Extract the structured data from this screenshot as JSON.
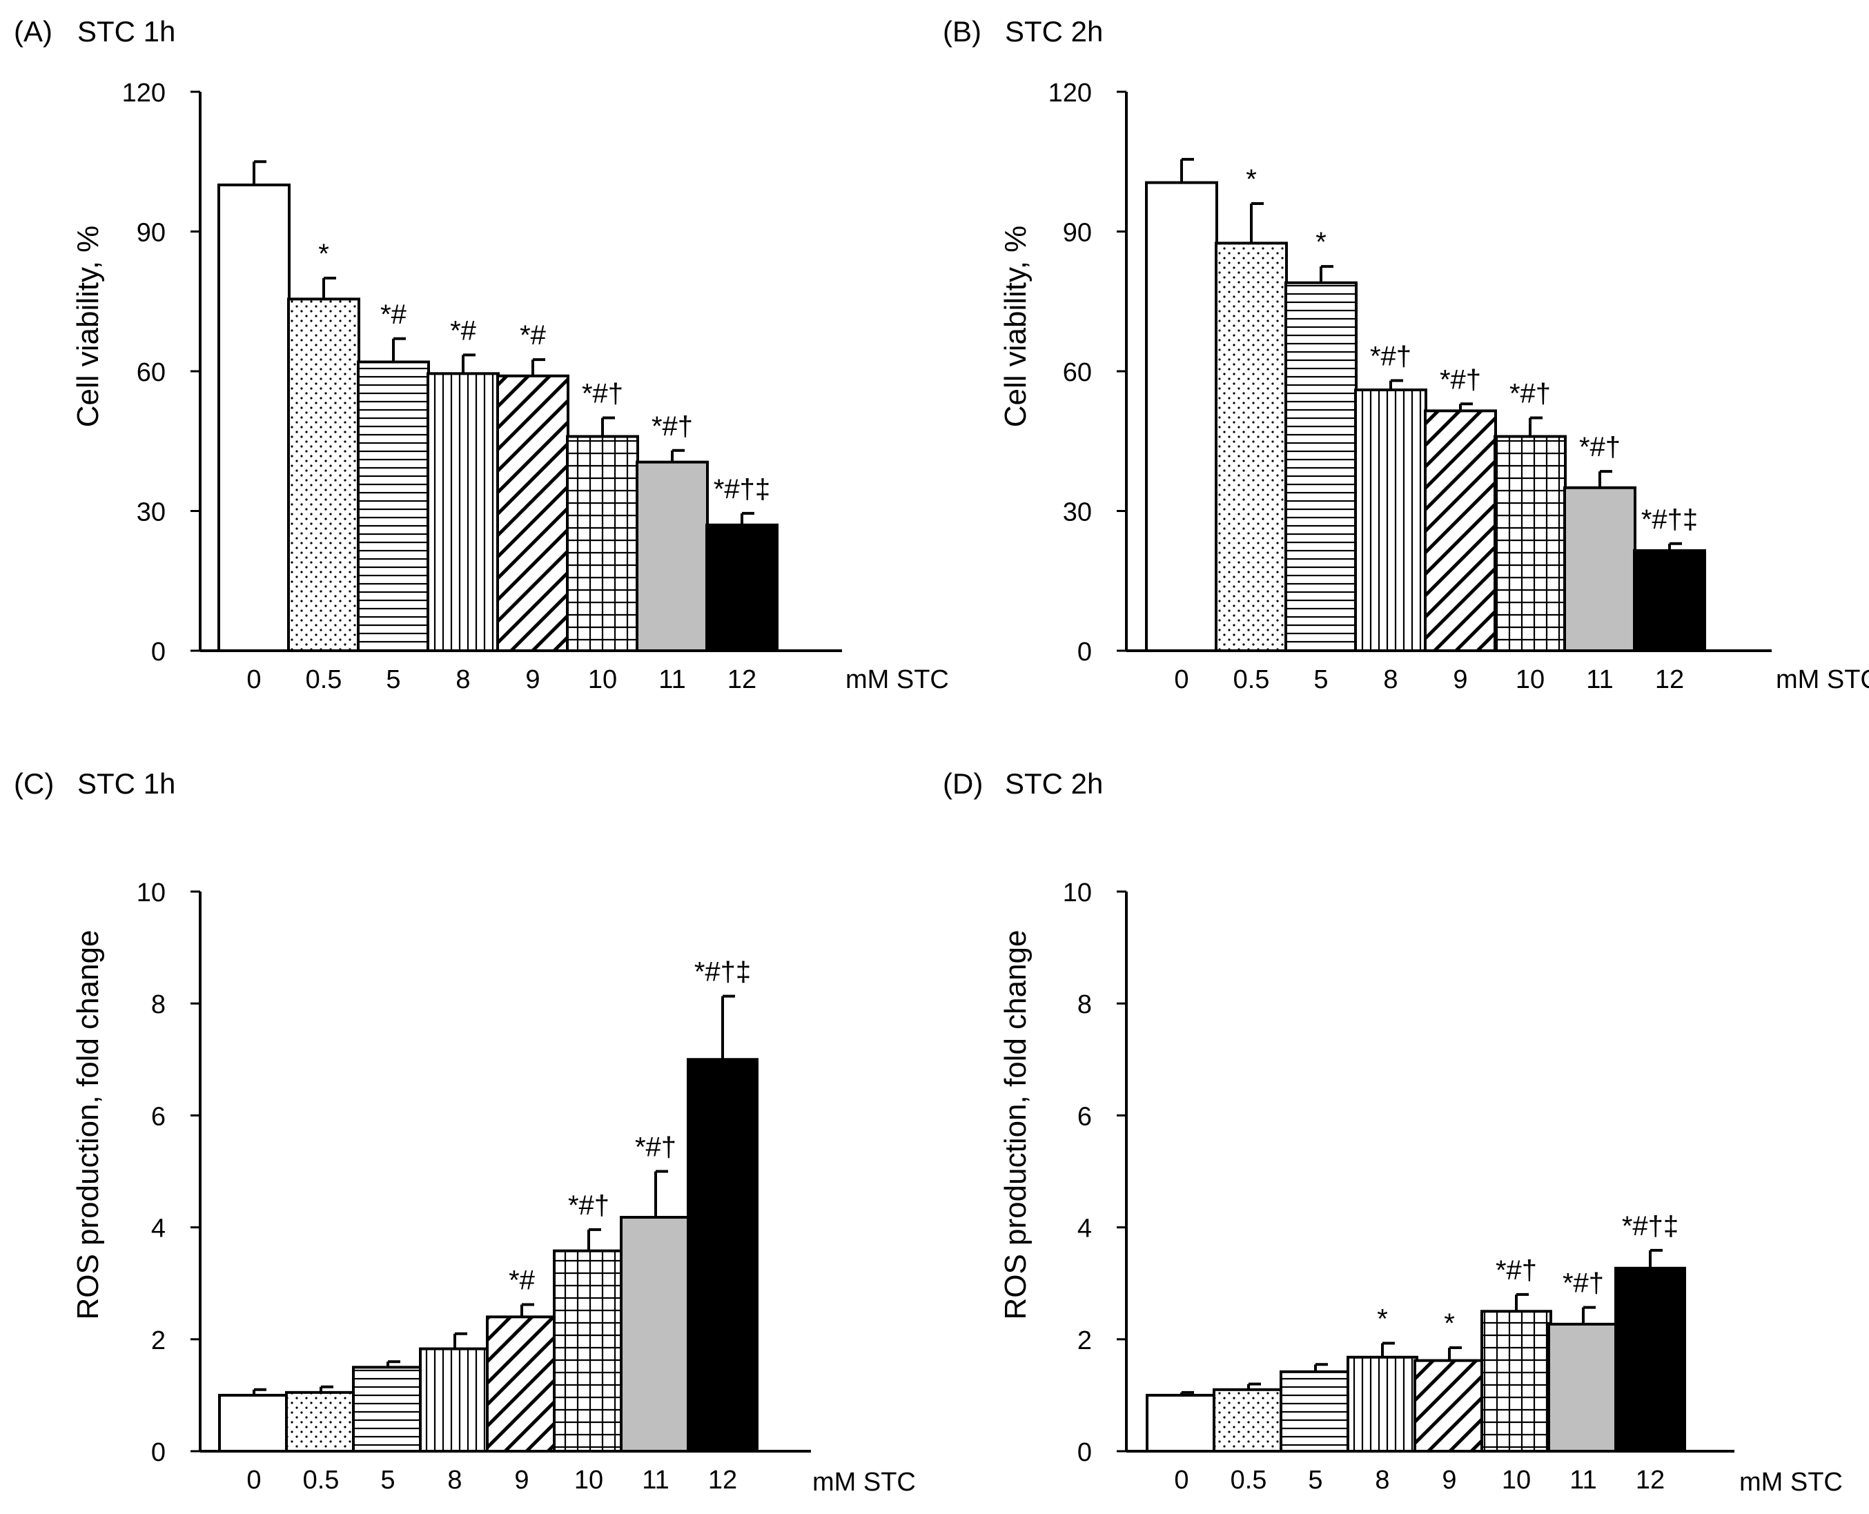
{
  "chart_data": [
    {
      "id": "A",
      "type": "bar",
      "panel_label": "(A)",
      "title": "STC 1h",
      "ylabel": "Cell viability, %",
      "xlabel": "mM STC",
      "ylim": [
        0,
        120
      ],
      "yticks": [
        0,
        30,
        60,
        90,
        120
      ],
      "categories": [
        "0",
        "0.5",
        "5",
        "8",
        "9",
        "10",
        "11",
        "12"
      ],
      "values": [
        100,
        75.5,
        62,
        59.5,
        59,
        46,
        40.5,
        27
      ],
      "errors": [
        5,
        4.5,
        5,
        4,
        3.5,
        4,
        2.5,
        2.5
      ],
      "annotations": [
        "",
        "*",
        "*#",
        "*#",
        "*#",
        "*#†",
        "*#†",
        "*#†‡"
      ]
    },
    {
      "id": "B",
      "type": "bar",
      "panel_label": "(B)",
      "title": "STC 2h",
      "ylabel": "Cell viability, %",
      "xlabel": "mM STC",
      "ylim": [
        0,
        120
      ],
      "yticks": [
        0,
        30,
        60,
        90,
        120
      ],
      "categories": [
        "0",
        "0.5",
        "5",
        "8",
        "9",
        "10",
        "11",
        "12"
      ],
      "values": [
        100.5,
        87.5,
        79,
        56,
        51.5,
        46,
        35,
        21.5
      ],
      "errors": [
        5,
        8.5,
        3.5,
        2,
        1.5,
        4,
        3.5,
        1.5
      ],
      "annotations": [
        "",
        "*",
        "*",
        "*#†",
        "*#†",
        "*#†",
        "*#†",
        "*#†‡"
      ]
    },
    {
      "id": "C",
      "type": "bar",
      "panel_label": "(C)",
      "title": "STC 1h",
      "ylabel": "ROS production, fold change",
      "xlabel": "mM STC",
      "ylim": [
        0,
        10
      ],
      "yticks": [
        0,
        2,
        4,
        6,
        8,
        10
      ],
      "categories": [
        "0",
        "0.5",
        "5",
        "8",
        "9",
        "10",
        "11",
        "12"
      ],
      "values": [
        1.0,
        1.05,
        1.5,
        1.83,
        2.4,
        3.58,
        4.18,
        7.0
      ],
      "errors": [
        0.1,
        0.1,
        0.1,
        0.27,
        0.22,
        0.38,
        0.82,
        1.13
      ],
      "annotations": [
        "",
        "",
        "",
        "",
        "*#",
        "*#†",
        "*#†",
        "*#†‡"
      ]
    },
    {
      "id": "D",
      "type": "bar",
      "panel_label": "(D)",
      "title": "STC 2h",
      "ylabel": "ROS production, fold change",
      "xlabel": "mM STC",
      "ylim": [
        0,
        10
      ],
      "yticks": [
        0,
        2,
        4,
        6,
        8,
        10
      ],
      "categories": [
        "0",
        "0.5",
        "5",
        "8",
        "9",
        "10",
        "11",
        "12"
      ],
      "values": [
        1.0,
        1.1,
        1.42,
        1.68,
        1.62,
        2.5,
        2.27,
        3.27
      ],
      "errors": [
        0.05,
        0.1,
        0.13,
        0.25,
        0.23,
        0.3,
        0.3,
        0.32
      ],
      "annotations": [
        "",
        "",
        "",
        "*",
        "*",
        "*#†",
        "*#†",
        "*#†‡"
      ]
    }
  ]
}
